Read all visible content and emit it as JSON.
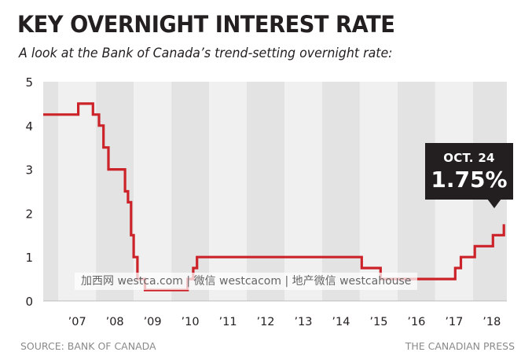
{
  "title": "KEY OVERNIGHT INTEREST RATE",
  "subtitle": "A look at the Bank of Canada’s trend-setting overnight rate:",
  "source": "SOURCE: BANK OF CANADA",
  "credit": "THE CANADIAN PRESS",
  "watermark": "加西网 westca.com | 微信 westcacom | 地产微信 westcahouse",
  "callout": {
    "date": "OCT. 24",
    "value": "1.75%"
  },
  "colors": {
    "line": "#cc2229",
    "band_dark": "#e3e3e3",
    "band_light": "#f0f0f0",
    "text": "#231f20"
  },
  "chart_data": {
    "type": "line",
    "title": "KEY OVERNIGHT INTEREST RATE",
    "xlabel": "",
    "ylabel": "",
    "ylim": [
      0,
      5
    ],
    "xlim": [
      2006.6,
      2018.9
    ],
    "grid": false,
    "yticks": [
      "0",
      "1",
      "2",
      "3",
      "4",
      "5"
    ],
    "xticks": [
      "’07",
      "’08",
      "’09",
      "’10",
      "’11",
      "’12",
      "’13",
      "’14",
      "’15",
      "’16",
      "’17",
      "’18"
    ],
    "series": [
      {
        "step": true,
        "points": [
          [
            2006.6,
            4.25
          ],
          [
            2007.53,
            4.5
          ],
          [
            2007.92,
            4.25
          ],
          [
            2008.08,
            4.0
          ],
          [
            2008.2,
            3.5
          ],
          [
            2008.33,
            3.0
          ],
          [
            2008.77,
            2.5
          ],
          [
            2008.85,
            2.25
          ],
          [
            2008.93,
            1.5
          ],
          [
            2009.0,
            1.0
          ],
          [
            2009.1,
            0.5
          ],
          [
            2009.3,
            0.25
          ],
          [
            2010.43,
            0.5
          ],
          [
            2010.58,
            0.75
          ],
          [
            2010.68,
            1.0
          ],
          [
            2015.05,
            0.75
          ],
          [
            2015.55,
            0.5
          ],
          [
            2017.53,
            0.75
          ],
          [
            2017.68,
            1.0
          ],
          [
            2018.05,
            1.25
          ],
          [
            2018.53,
            1.5
          ],
          [
            2018.82,
            1.75
          ]
        ]
      }
    ]
  }
}
